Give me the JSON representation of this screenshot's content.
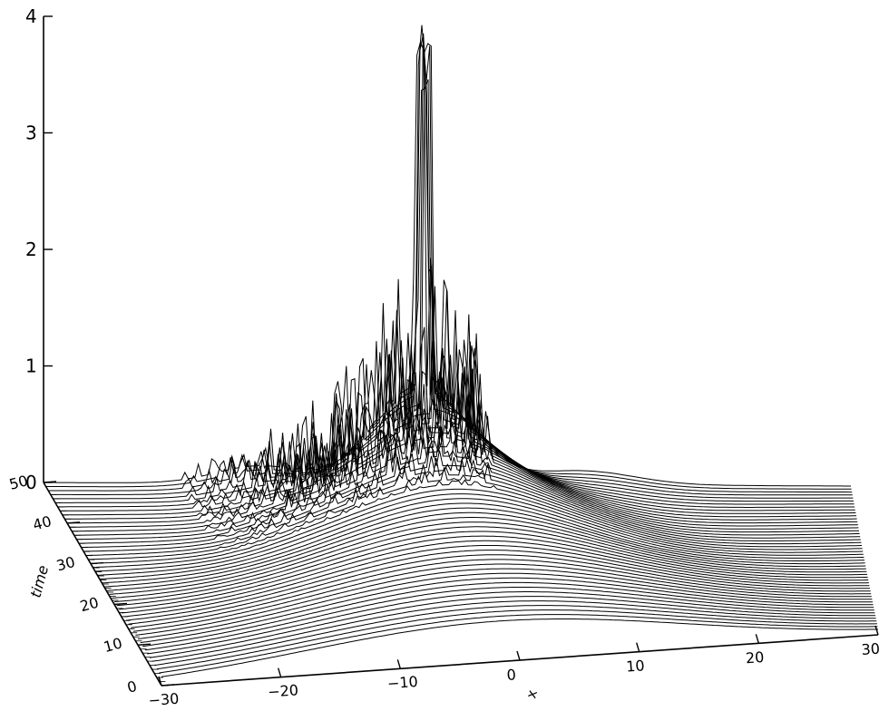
{
  "chart_data": {
    "type": "surface",
    "title": "",
    "z_axis": {
      "label": "",
      "ticks": [
        "0",
        "1",
        "2",
        "3",
        "4"
      ],
      "range": [
        0,
        4
      ]
    },
    "x_axis": {
      "label": "x",
      "ticks": [
        "-30",
        "-20",
        "-10",
        "0",
        "10",
        "20",
        "30"
      ],
      "range": [
        -30,
        30
      ]
    },
    "time_axis": {
      "label": "time",
      "ticks": [
        "0",
        "10",
        "20",
        "30",
        "40",
        "50"
      ],
      "range": [
        0,
        50
      ]
    },
    "grid": false,
    "legend": "none",
    "line_color": "#000000",
    "slices": 50,
    "description_values": {
      "initial_peak_height": 0.35,
      "max_spike_height": 4.0,
      "spike_region_x": [
        -20,
        2
      ]
    }
  }
}
